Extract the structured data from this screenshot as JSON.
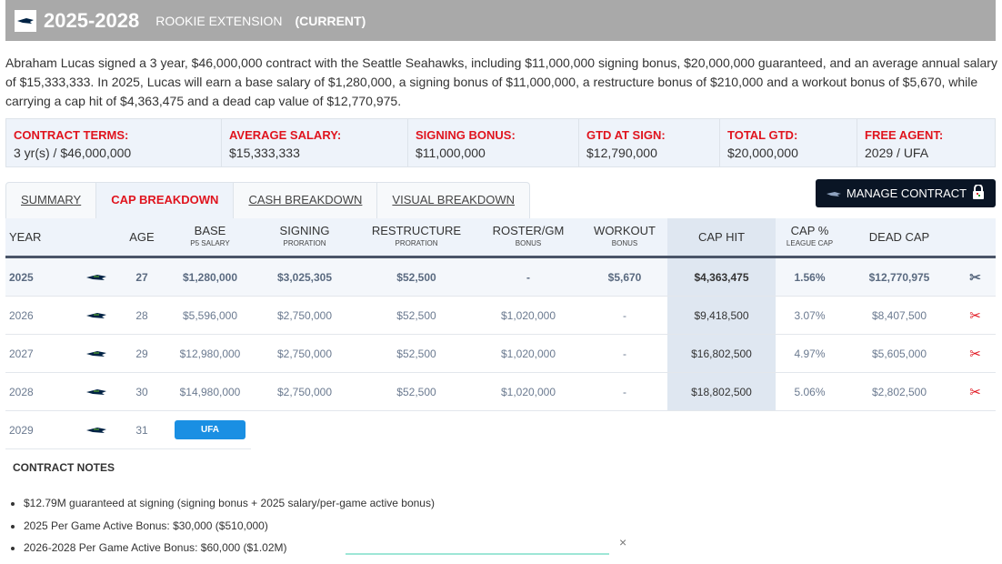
{
  "header": {
    "years": "2025-2028",
    "type": "ROOKIE EXTENSION",
    "status": "(CURRENT)"
  },
  "description": "Abraham Lucas signed a 3 year, $46,000,000 contract with the Seattle Seahawks, including $11,000,000 signing bonus, $20,000,000 guaranteed, and an average annual salary of $15,333,333. In 2025, Lucas will earn a base salary of $1,280,000, a signing bonus of $11,000,000, a restructure bonus of $210,000 and a workout bonus of $5,670, while carrying a cap hit of $4,363,475 and a dead cap value of $12,770,975.",
  "stats": [
    {
      "label": "CONTRACT TERMS:",
      "value": "3 yr(s) / $46,000,000"
    },
    {
      "label": "AVERAGE SALARY:",
      "value": "$15,333,333"
    },
    {
      "label": "SIGNING BONUS:",
      "value": "$11,000,000"
    },
    {
      "label": "GTD AT SIGN:",
      "value": "$12,790,000"
    },
    {
      "label": "TOTAL GTD:",
      "value": "$20,000,000"
    },
    {
      "label": "FREE AGENT:",
      "value": "2029 / UFA"
    }
  ],
  "tabs": [
    "SUMMARY",
    "CAP BREAKDOWN",
    "CASH BREAKDOWN",
    "VISUAL BREAKDOWN"
  ],
  "manage_label": "MANAGE CONTRACT",
  "columns": [
    {
      "h": "YEAR"
    },
    {
      "h": ""
    },
    {
      "h": "AGE"
    },
    {
      "h": "BASE",
      "s": "P5 SALARY"
    },
    {
      "h": "SIGNING",
      "s": "PRORATION"
    },
    {
      "h": "RESTRUCTURE",
      "s": "PRORATION"
    },
    {
      "h": "ROSTER/GM",
      "s": "BONUS"
    },
    {
      "h": "WORKOUT",
      "s": "BONUS"
    },
    {
      "h": "CAP HIT"
    },
    {
      "h": "CAP %",
      "s": "LEAGUE CAP"
    },
    {
      "h": "DEAD CAP"
    }
  ],
  "rows": [
    [
      "2025",
      "27",
      "$1,280,000",
      "$3,025,305",
      "$52,500",
      "-",
      "$5,670",
      "$4,363,475",
      "1.56%",
      "$12,770,975"
    ],
    [
      "2026",
      "28",
      "$5,596,000",
      "$2,750,000",
      "$52,500",
      "$1,020,000",
      "-",
      "$9,418,500",
      "3.07%",
      "$8,407,500"
    ],
    [
      "2027",
      "29",
      "$12,980,000",
      "$2,750,000",
      "$52,500",
      "$1,020,000",
      "-",
      "$16,802,500",
      "4.97%",
      "$5,605,000"
    ],
    [
      "2028",
      "30",
      "$14,980,000",
      "$2,750,000",
      "$52,500",
      "$1,020,000",
      "-",
      "$18,802,500",
      "5.06%",
      "$2,802,500"
    ]
  ],
  "fa_row": {
    "year": "2029",
    "age": "31",
    "badge": "UFA"
  },
  "notes": {
    "title": "CONTRACT NOTES",
    "items": [
      "$12.79M guaranteed at signing (signing bonus + 2025 salary/per-game active bonus)",
      "2025 Per Game Active Bonus: $30,000 ($510,000)",
      "2026-2028 Per Game Active Bonus: $60,000 ($1.02M)"
    ]
  },
  "close": "×"
}
